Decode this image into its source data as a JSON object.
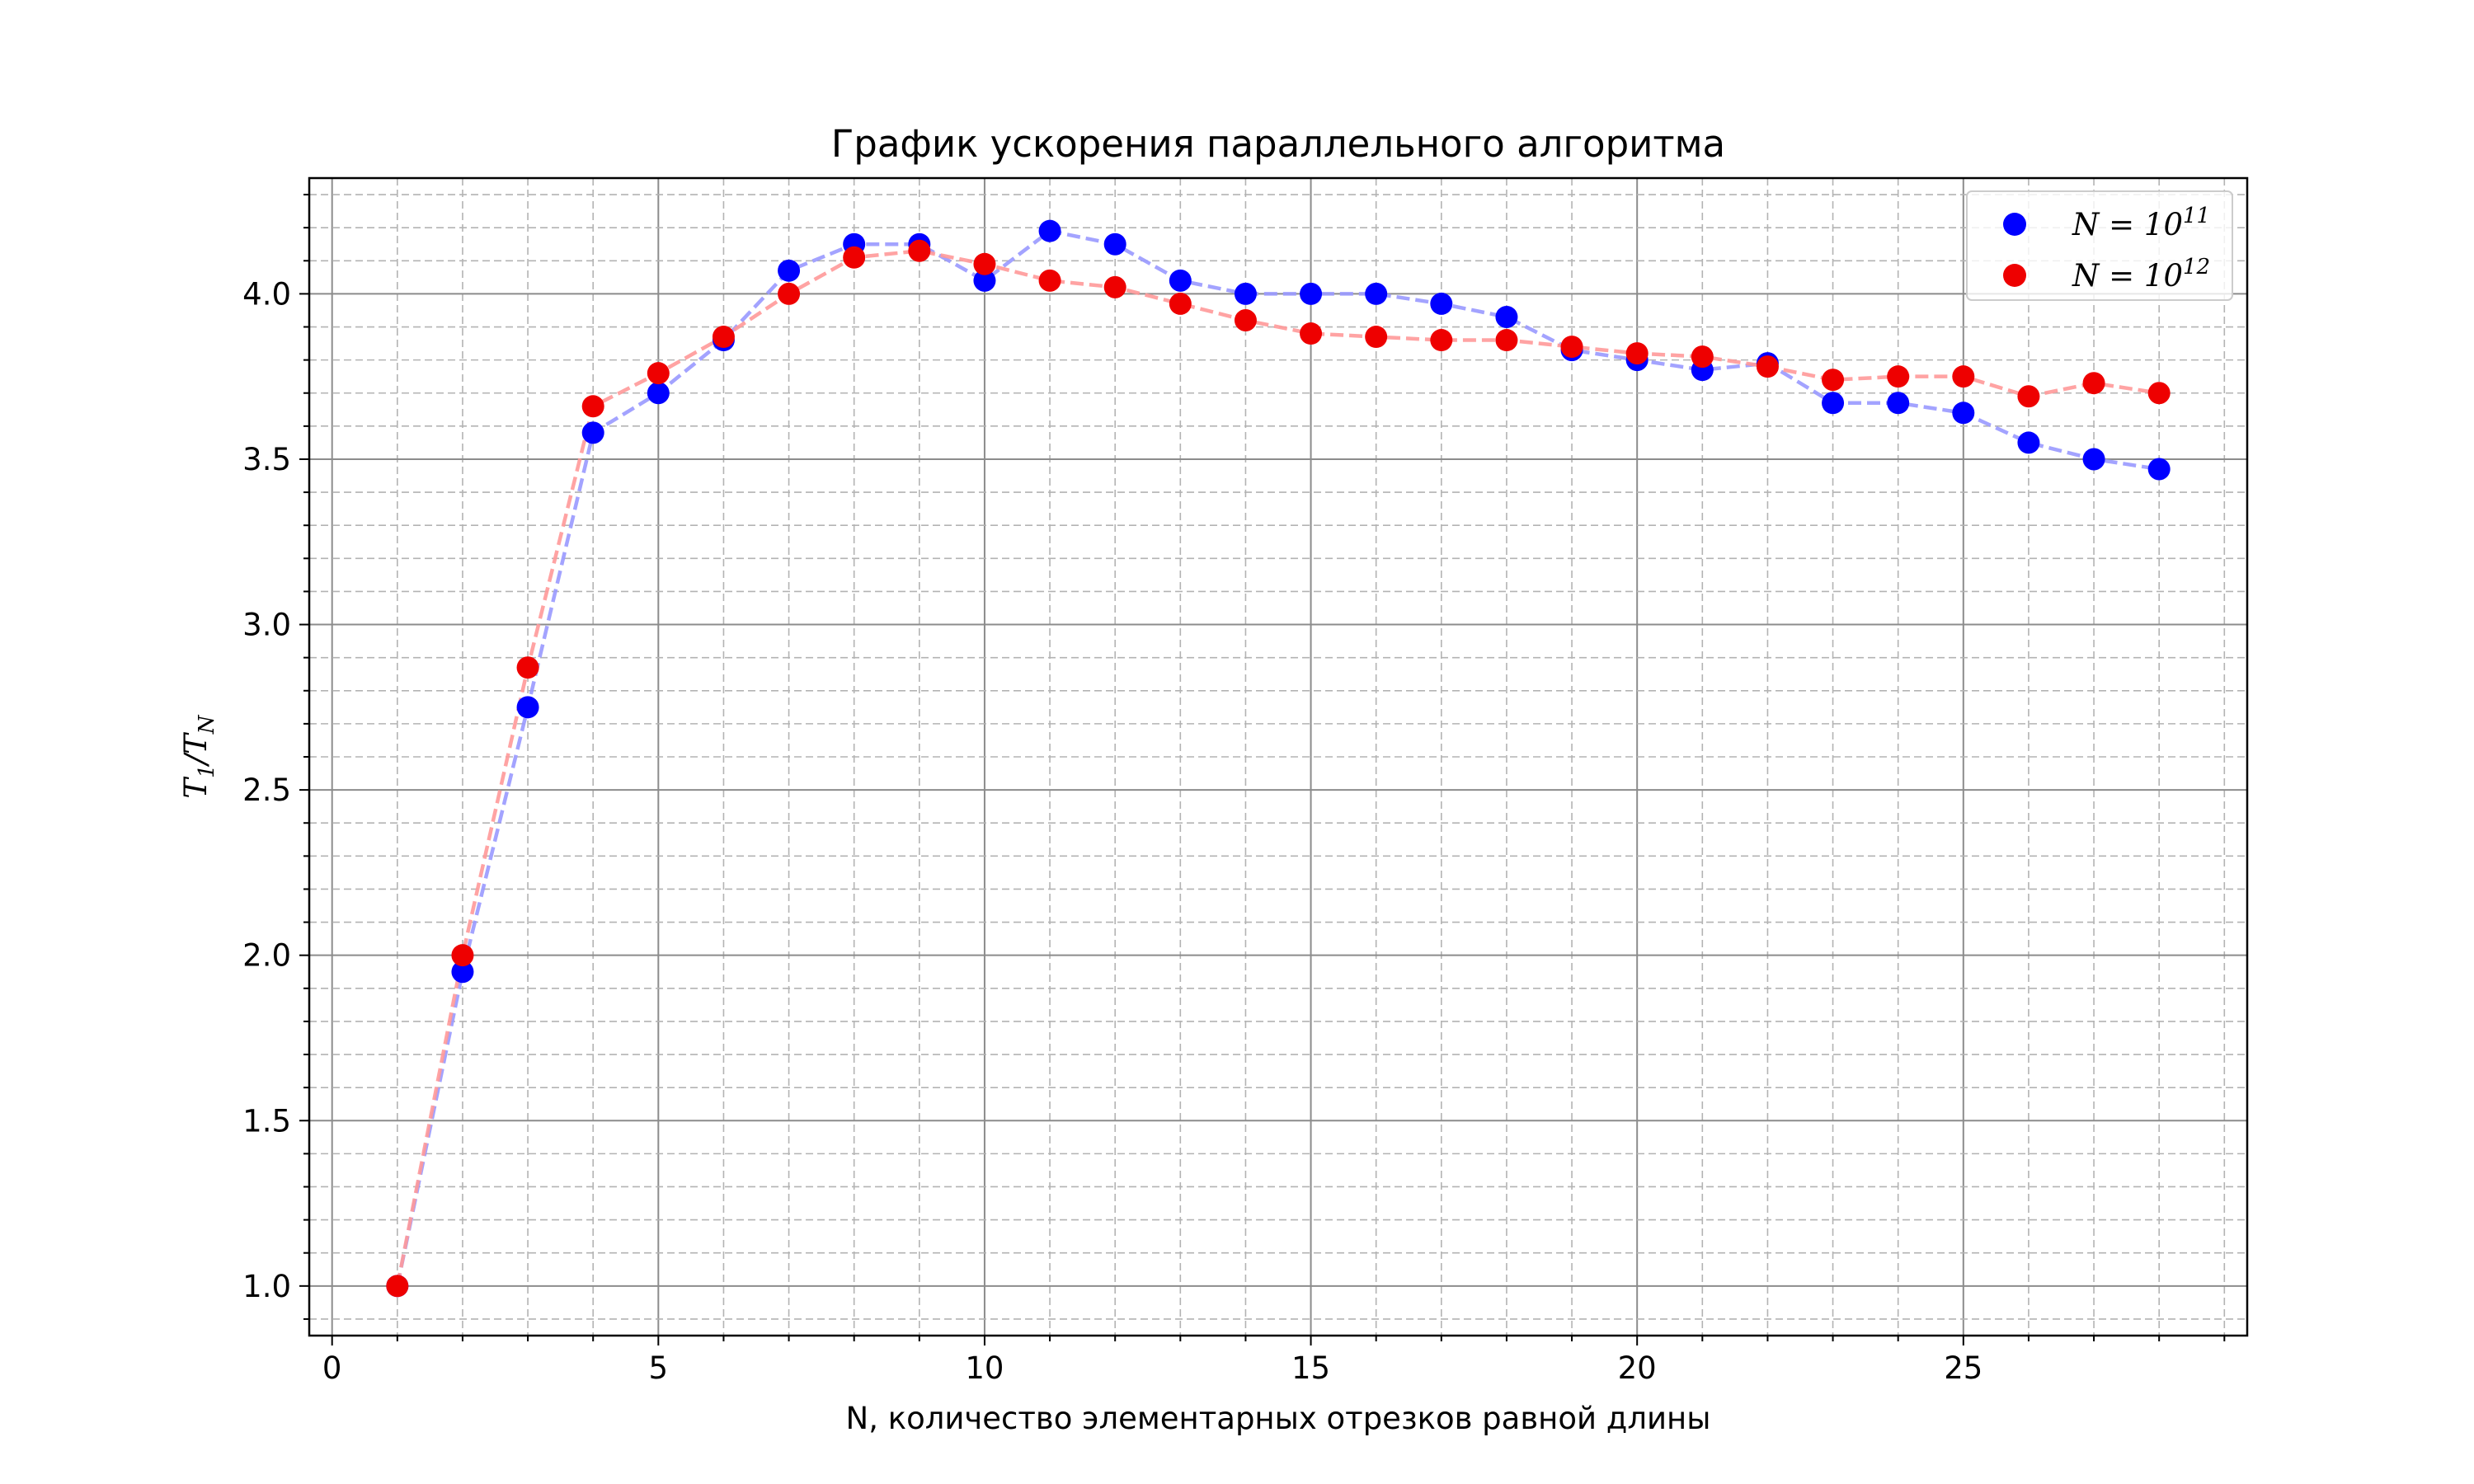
{
  "chart_data": {
    "type": "scatter",
    "title": "График ускорения параллельного алгоритма",
    "xlabel": "N, количество элементарных отрезков равной длины",
    "ylabel": "T1/TN",
    "ylabel_parts": {
      "main1": "T",
      "sub1": "1",
      "sep": "/",
      "main2": "T",
      "sub2": "N"
    },
    "xlim": [
      -0.35,
      29.35
    ],
    "ylim": [
      0.85,
      4.35
    ],
    "xticks": [
      0,
      5,
      10,
      15,
      20,
      25
    ],
    "xtick_labels": [
      "0",
      "5",
      "10",
      "15",
      "20",
      "25"
    ],
    "yticks": [
      1.0,
      1.5,
      2.0,
      2.5,
      3.0,
      3.5,
      4.0
    ],
    "ytick_labels": [
      "1.0",
      "1.5",
      "2.0",
      "2.5",
      "3.0",
      "3.5",
      "4.0"
    ],
    "grid": {
      "major": true,
      "minor": true,
      "style": "dashed"
    },
    "legend_position": "top-right",
    "x": [
      1,
      2,
      3,
      4,
      5,
      6,
      7,
      8,
      9,
      10,
      11,
      12,
      13,
      14,
      15,
      16,
      17,
      18,
      19,
      20,
      21,
      22,
      23,
      24,
      25,
      26,
      27,
      28
    ],
    "series": [
      {
        "name": "N = 10^11",
        "legend": {
          "base": "N = 10",
          "exp": "11"
        },
        "color": "#0000ff",
        "line_color": "#9999ff",
        "values": [
          1.0,
          1.95,
          2.75,
          3.58,
          3.7,
          3.86,
          4.07,
          4.15,
          4.15,
          4.04,
          4.19,
          4.15,
          4.04,
          4.0,
          4.0,
          4.0,
          3.97,
          3.93,
          3.83,
          3.8,
          3.77,
          3.79,
          3.67,
          3.67,
          3.64,
          3.55,
          3.5,
          3.47
        ]
      },
      {
        "name": "N = 10^12",
        "legend": {
          "base": "N = 10",
          "exp": "12"
        },
        "color": "#ee0000",
        "line_color": "#ff9999",
        "values": [
          1.0,
          2.0,
          2.87,
          3.66,
          3.76,
          3.87,
          4.0,
          4.11,
          4.13,
          4.09,
          4.04,
          4.02,
          3.97,
          3.92,
          3.88,
          3.87,
          3.86,
          3.86,
          3.84,
          3.82,
          3.81,
          3.78,
          3.74,
          3.75,
          3.75,
          3.69,
          3.73,
          3.7
        ]
      }
    ]
  }
}
